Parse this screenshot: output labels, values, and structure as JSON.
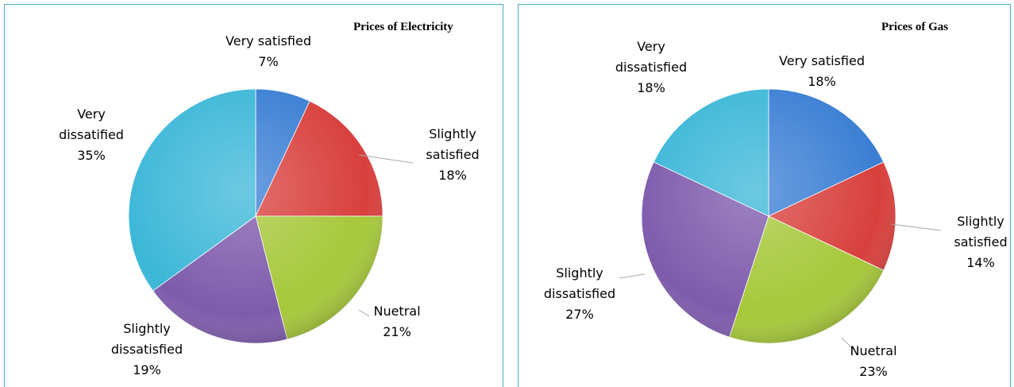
{
  "chart_data": [
    {
      "type": "pie",
      "title": "Prices of Electricity",
      "categories": [
        "Very satisfied",
        "Slightly satisfied",
        "Nuetral",
        "Slightly dissatisfied",
        "Very dissatified"
      ],
      "values": [
        7,
        18,
        21,
        19,
        35
      ],
      "value_labels": [
        "7%",
        "18%",
        "21%",
        "19%",
        "35%"
      ],
      "colors": [
        "#3b7fd4",
        "#d8403d",
        "#a6c83a",
        "#7e5bac",
        "#3cb7d8"
      ]
    },
    {
      "type": "pie",
      "title": "Prices of Gas",
      "categories": [
        "Very satisfied",
        "Slightly satisfied",
        "Nuetral",
        "Slightly dissatisfied",
        "Very dissatisfied"
      ],
      "values": [
        18,
        14,
        23,
        27,
        18
      ],
      "value_labels": [
        "18%",
        "14%",
        "23%",
        "27%",
        "18%"
      ],
      "colors": [
        "#3b7fd4",
        "#d8403d",
        "#a6c83a",
        "#7e5bac",
        "#3cb7d8"
      ]
    }
  ]
}
